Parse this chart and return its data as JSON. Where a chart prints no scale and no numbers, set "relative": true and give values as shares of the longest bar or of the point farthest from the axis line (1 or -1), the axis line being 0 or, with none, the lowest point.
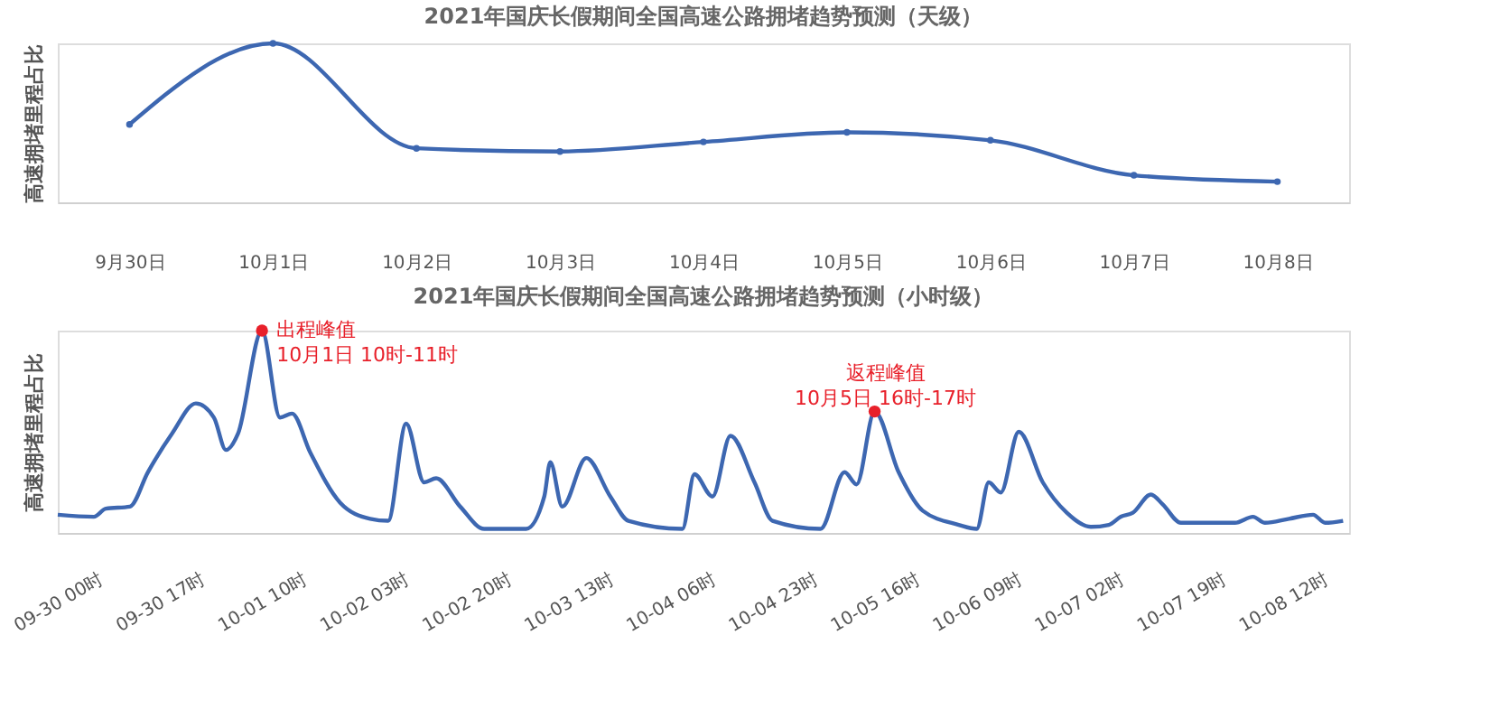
{
  "chart_data": [
    {
      "type": "line",
      "title": "2021年国庆长假期间全国高速公路拥堵趋势预测（天级）",
      "ylabel": "高速拥堵里程占比",
      "relative": true,
      "grid": false,
      "marker": "circle",
      "categories": [
        "9月30日",
        "10月1日",
        "10月2日",
        "10月3日",
        "10月4日",
        "10月5日",
        "10月6日",
        "10月7日",
        "10月8日"
      ],
      "series": [
        {
          "color": "#3d67b1",
          "values": [
            0.49,
            1.0,
            0.34,
            0.32,
            0.38,
            0.44,
            0.39,
            0.17,
            0.13
          ]
        }
      ]
    },
    {
      "type": "line",
      "title": "2021年国庆长假期间全国高速公路拥堵趋势预测（小时级）",
      "ylabel": "高速拥堵里程占比",
      "relative": true,
      "grid": false,
      "marker": "none",
      "xlim": [
        "2021-09-30T00:00",
        "2021-10-08T23:00"
      ],
      "xticks": [
        {
          "value": "2021-09-30T00:00",
          "label": "09-30 00时"
        },
        {
          "value": "2021-09-30T17:00",
          "label": "09-30 17时"
        },
        {
          "value": "2021-10-01T10:00",
          "label": "10-01 10时"
        },
        {
          "value": "2021-10-02T03:00",
          "label": "10-02 03时"
        },
        {
          "value": "2021-10-02T20:00",
          "label": "10-02 20时"
        },
        {
          "value": "2021-10-03T13:00",
          "label": "10-03 13时"
        },
        {
          "value": "2021-10-04T06:00",
          "label": "10-04 06时"
        },
        {
          "value": "2021-10-04T23:00",
          "label": "10-04 23时"
        },
        {
          "value": "2021-10-05T16:00",
          "label": "10-05 16时"
        },
        {
          "value": "2021-10-06T09:00",
          "label": "10-06 09时"
        },
        {
          "value": "2021-10-07T02:00",
          "label": "10-07 02时"
        },
        {
          "value": "2021-10-07T19:00",
          "label": "10-07 19时"
        },
        {
          "value": "2021-10-08T12:00",
          "label": "10-08 12时"
        }
      ],
      "annotations": [
        {
          "text": "出程峰值\n10月1日 10时-11时",
          "x": "2021-10-01T10:00",
          "y": 1.0
        },
        {
          "text": "返程峰值\n10月5日 16时-17时",
          "x": "2021-10-05T16:00",
          "y": 0.6
        }
      ],
      "x": [
        "2021-09-30T00:00",
        "2021-09-30T06:00",
        "2021-09-30T08:00",
        "2021-09-30T12:00",
        "2021-09-30T15:00",
        "2021-09-30T19:00",
        "2021-09-30T23:00",
        "2021-10-01T02:00",
        "2021-10-01T04:00",
        "2021-10-01T06:00",
        "2021-10-01T10:00",
        "2021-10-01T13:00",
        "2021-10-01T15:00",
        "2021-10-01T18:00",
        "2021-10-01T23:00",
        "2021-10-02T04:00",
        "2021-10-02T07:00",
        "2021-10-02T10:00",
        "2021-10-02T13:00",
        "2021-10-02T15:00",
        "2021-10-02T19:00",
        "2021-10-02T23:00",
        "2021-10-03T06:00",
        "2021-10-03T09:00",
        "2021-10-03T10:00",
        "2021-10-03T12:00",
        "2021-10-03T16:00",
        "2021-10-03T20:00",
        "2021-10-03T23:00",
        "2021-10-04T08:00",
        "2021-10-04T10:00",
        "2021-10-04T13:00",
        "2021-10-04T16:00",
        "2021-10-04T20:00",
        "2021-10-04T23:00",
        "2021-10-05T07:00",
        "2021-10-05T11:00",
        "2021-10-05T13:00",
        "2021-10-05T16:00",
        "2021-10-05T20:00",
        "2021-10-06T00:00",
        "2021-10-06T06:00",
        "2021-10-06T09:00",
        "2021-10-06T11:00",
        "2021-10-06T13:00",
        "2021-10-06T16:00",
        "2021-10-06T20:00",
        "2021-10-07T00:00",
        "2021-10-07T04:00",
        "2021-10-07T07:00",
        "2021-10-07T09:00",
        "2021-10-07T11:00",
        "2021-10-07T14:00",
        "2021-10-07T16:00",
        "2021-10-07T19:00",
        "2021-10-07T22:00",
        "2021-10-08T04:00",
        "2021-10-08T07:00",
        "2021-10-08T09:00",
        "2021-10-08T13:00",
        "2021-10-08T17:00",
        "2021-10-08T19:00",
        "2021-10-08T22:00"
      ],
      "series": [
        {
          "color": "#3d67b1",
          "values": [
            0.09,
            0.08,
            0.12,
            0.13,
            0.3,
            0.49,
            0.64,
            0.57,
            0.41,
            0.49,
            1.0,
            0.57,
            0.59,
            0.4,
            0.15,
            0.07,
            0.06,
            0.54,
            0.25,
            0.27,
            0.13,
            0.02,
            0.02,
            0.18,
            0.35,
            0.13,
            0.37,
            0.18,
            0.06,
            0.02,
            0.29,
            0.18,
            0.48,
            0.25,
            0.06,
            0.02,
            0.3,
            0.24,
            0.6,
            0.3,
            0.11,
            0.04,
            0.02,
            0.25,
            0.2,
            0.5,
            0.25,
            0.1,
            0.03,
            0.04,
            0.08,
            0.1,
            0.19,
            0.14,
            0.05,
            0.05,
            0.05,
            0.08,
            0.05,
            0.07,
            0.09,
            0.05,
            0.06
          ]
        }
      ]
    }
  ]
}
